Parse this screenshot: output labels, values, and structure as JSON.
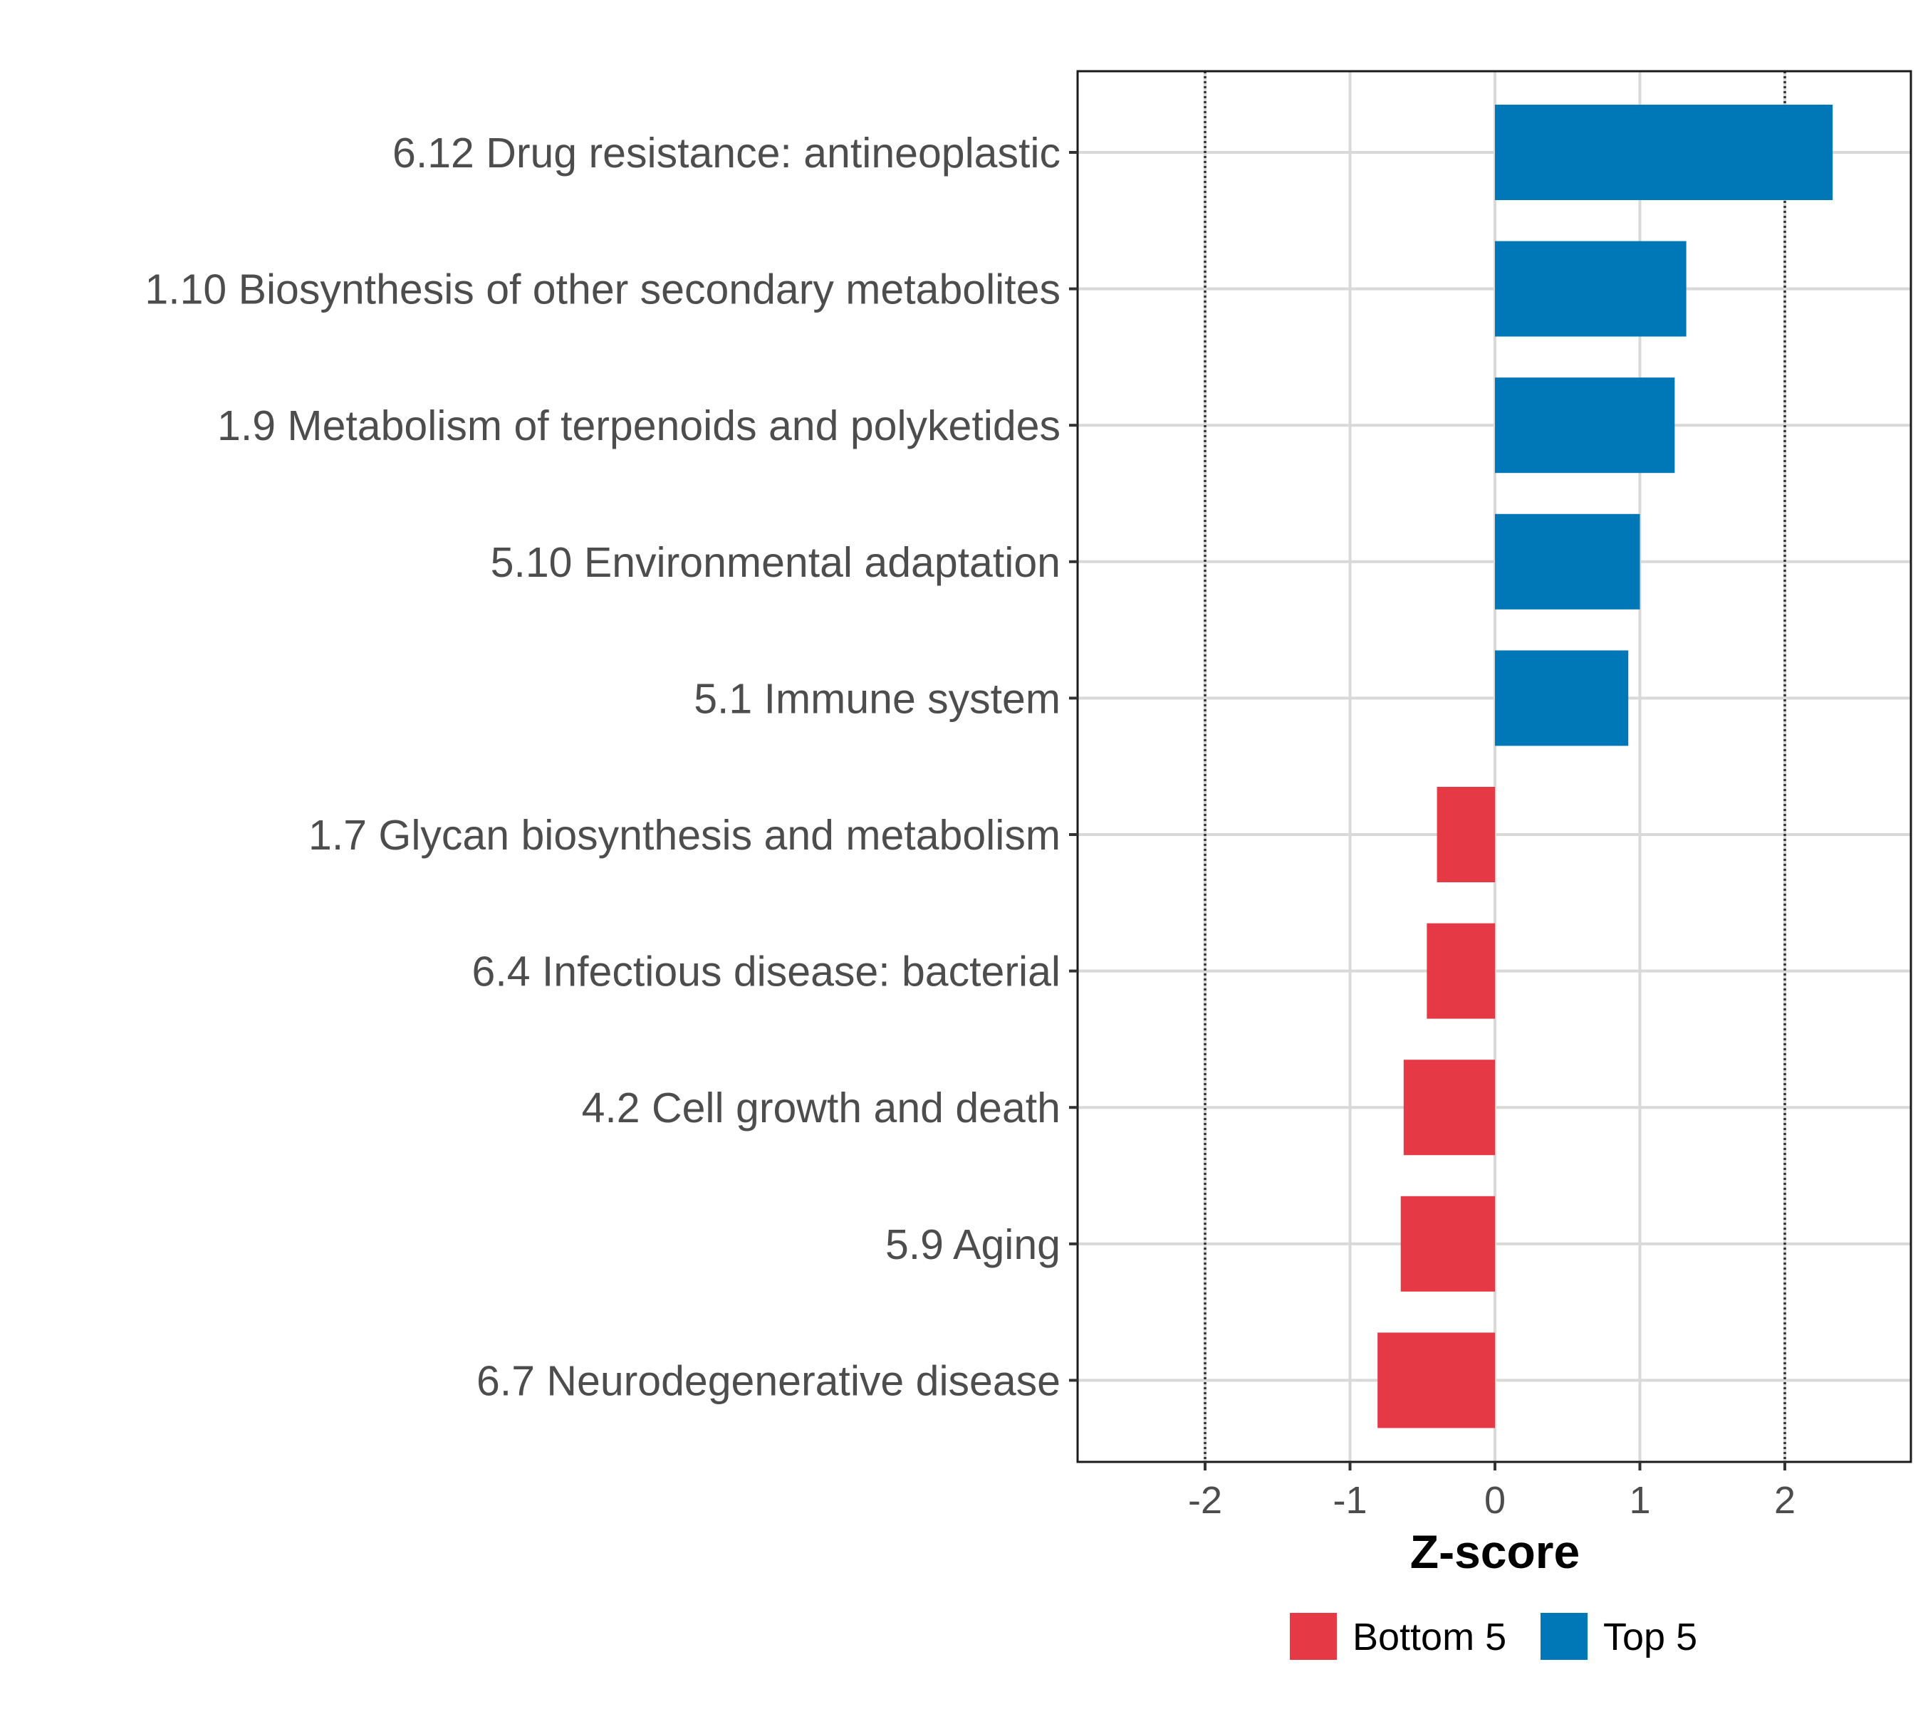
{
  "chart_data": {
    "type": "bar",
    "orientation": "horizontal",
    "categories": [
      "6.12 Drug resistance: antineoplastic",
      "1.10 Biosynthesis of other secondary metabolites",
      "1.9 Metabolism of terpenoids and polyketides",
      "5.10 Environmental adaptation",
      "5.1 Immune system",
      "1.7 Glycan biosynthesis and metabolism",
      "6.4 Infectious disease: bacterial",
      "4.2 Cell growth and death",
      "5.9 Aging",
      "6.7 Neurodegenerative disease"
    ],
    "values": [
      2.33,
      1.32,
      1.24,
      1.0,
      0.92,
      -0.4,
      -0.47,
      -0.63,
      -0.65,
      -0.81
    ],
    "groups": [
      "Top 5",
      "Top 5",
      "Top 5",
      "Top 5",
      "Top 5",
      "Bottom 5",
      "Bottom 5",
      "Bottom 5",
      "Bottom 5",
      "Bottom 5"
    ],
    "xlabel": "Z-score",
    "ylabel": "",
    "title": "",
    "xlim": [
      -2.9,
      2.9
    ],
    "xticks": [
      -2,
      -1,
      0,
      1,
      2
    ],
    "xtick_labels": [
      "-2",
      "-1",
      "0",
      "1",
      "2"
    ],
    "reference_lines": [
      -2,
      2
    ],
    "grid": true,
    "legend": {
      "position": "bottom",
      "entries": [
        {
          "label": "Bottom 5",
          "color": "#e63946"
        },
        {
          "label": "Top 5",
          "color": "#0077b6"
        }
      ]
    },
    "colors": {
      "Top 5": "#0077b6",
      "Bottom 5": "#e63946"
    }
  }
}
